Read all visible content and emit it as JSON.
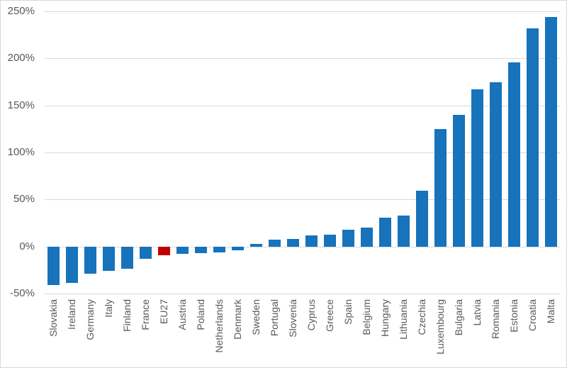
{
  "chart_data": {
    "type": "bar",
    "title": "",
    "xlabel": "",
    "ylabel": "",
    "value_suffix": "%",
    "categories": [
      "Slovakia",
      "Ireland",
      "Germany",
      "Italy",
      "Finland",
      "France",
      "EU27",
      "Austria",
      "Poland",
      "Netherlands",
      "Denmark",
      "Sweden",
      "Portugal",
      "Slovenia",
      "Cyprus",
      "Greece",
      "Spain",
      "Belgium",
      "Hungary",
      "Lithuania",
      "Czechia",
      "Luxembourg",
      "Bulgaria",
      "Latvia",
      "Romania",
      "Estonia",
      "Croatia",
      "Malta"
    ],
    "values": [
      -41,
      -39,
      -29,
      -26,
      -24,
      -13,
      -9,
      -8,
      -7,
      -6,
      -4,
      3,
      7,
      8,
      12,
      13,
      18,
      20,
      31,
      33,
      59,
      125,
      140,
      167,
      175,
      196,
      232,
      244
    ],
    "highlight_category": "EU27",
    "ylim": [
      -50,
      250
    ],
    "yticks": [
      250,
      200,
      150,
      100,
      50,
      0,
      -50
    ],
    "ytick_labels": [
      "250%",
      "200%",
      "150%",
      "100%",
      "50%",
      "0%",
      "-50%"
    ],
    "grid": true,
    "legend": false,
    "colors": {
      "bar": "#1673BC",
      "highlight": "#C00000",
      "gridline": "#D9D9D9",
      "axis_text": "#595959",
      "background": "#FFFFFF",
      "border": "#D9D9D9"
    }
  }
}
